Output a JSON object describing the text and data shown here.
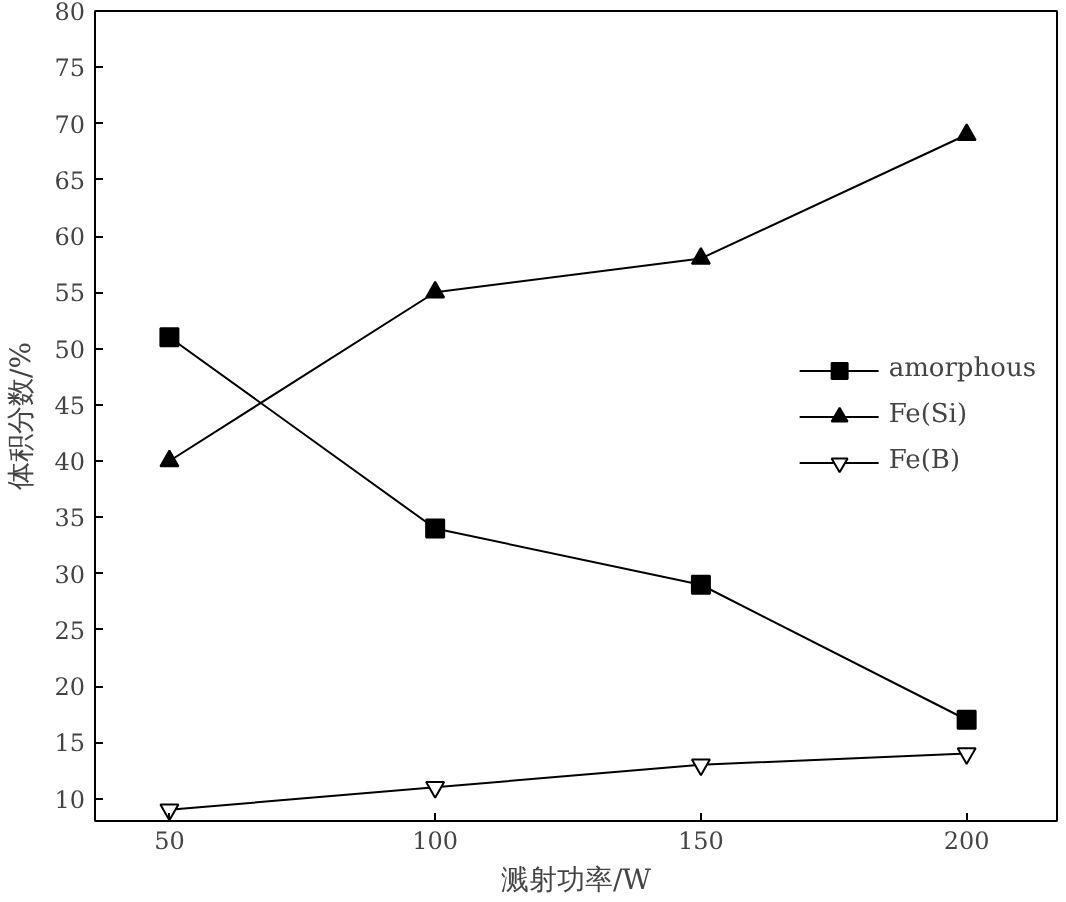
{
  "chart_data": {
    "type": "line",
    "xlabel": "溅射功率/W",
    "ylabel": "体积分数/%",
    "x": [
      50,
      100,
      150,
      200
    ],
    "xlim": [
      36,
      217
    ],
    "xticks": [
      50,
      100,
      150,
      200
    ],
    "ylim": [
      8,
      80
    ],
    "yticks": [
      10,
      15,
      20,
      25,
      30,
      35,
      40,
      45,
      50,
      55,
      60,
      65,
      70,
      75,
      80
    ],
    "legend": "right",
    "grid": false,
    "series": [
      {
        "name": "amorphous",
        "color": "#000000",
        "marker": "square",
        "values": [
          51,
          34,
          29,
          17
        ]
      },
      {
        "name": "Fe(Si)",
        "color": "#000000",
        "marker": "triangle",
        "values": [
          40,
          55,
          58,
          69
        ]
      },
      {
        "name": "Fe(B)",
        "color": "#000000",
        "marker": "triangle",
        "values": [
          9,
          11,
          13,
          14
        ]
      }
    ]
  }
}
